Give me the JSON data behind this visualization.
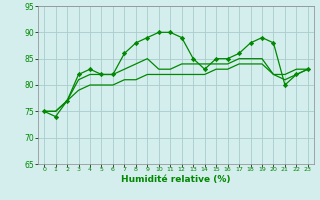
{
  "xlabel": "Humidité relative (%)",
  "bg_color": "#d4eeed",
  "grid_color": "#aacccc",
  "line_color": "#008800",
  "xlim": [
    -0.5,
    23.5
  ],
  "ylim": [
    65,
    95
  ],
  "yticks": [
    65,
    70,
    75,
    80,
    85,
    90,
    95
  ],
  "xticks": [
    0,
    1,
    2,
    3,
    4,
    5,
    6,
    7,
    8,
    9,
    10,
    11,
    12,
    13,
    14,
    15,
    16,
    17,
    18,
    19,
    20,
    21,
    22,
    23
  ],
  "line1_x": [
    0,
    1,
    2,
    3,
    4,
    5,
    6,
    7,
    8,
    9,
    10,
    11,
    12,
    13,
    14,
    15,
    16,
    17,
    18,
    19,
    20,
    21,
    22,
    23
  ],
  "line1_y": [
    75,
    74,
    77,
    82,
    83,
    82,
    82,
    86,
    88,
    89,
    90,
    90,
    89,
    85,
    83,
    85,
    85,
    86,
    88,
    89,
    88,
    80,
    82,
    83
  ],
  "line2_x": [
    0,
    1,
    2,
    3,
    4,
    5,
    6,
    7,
    8,
    9,
    10,
    11,
    12,
    13,
    14,
    15,
    16,
    17,
    18,
    19,
    20,
    21,
    22,
    23
  ],
  "line2_y": [
    75,
    75,
    77,
    81,
    82,
    82,
    82,
    83,
    84,
    85,
    83,
    83,
    84,
    84,
    84,
    84,
    84,
    85,
    85,
    85,
    82,
    82,
    83,
    83
  ],
  "line3_x": [
    0,
    1,
    2,
    3,
    4,
    5,
    6,
    7,
    8,
    9,
    10,
    11,
    12,
    13,
    14,
    15,
    16,
    17,
    18,
    19,
    20,
    21,
    22,
    23
  ],
  "line3_y": [
    75,
    75,
    77,
    79,
    80,
    80,
    80,
    81,
    81,
    82,
    82,
    82,
    82,
    82,
    82,
    83,
    83,
    84,
    84,
    84,
    82,
    81,
    82,
    83
  ]
}
